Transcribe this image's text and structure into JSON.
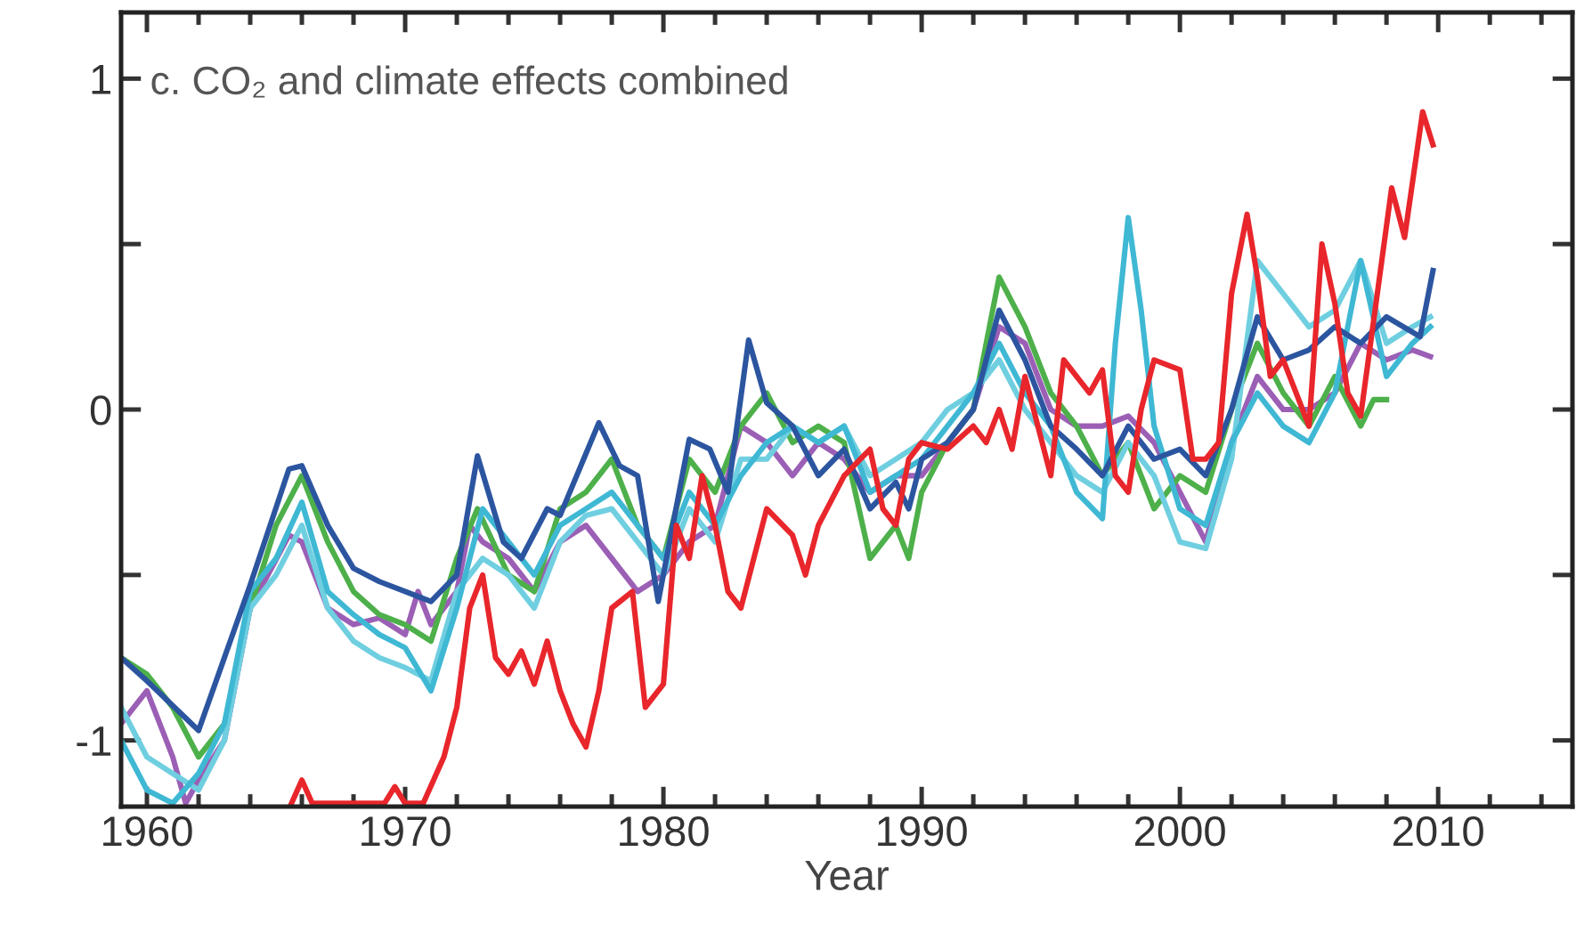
{
  "chart_data": {
    "type": "line",
    "title": "c. CO₂ and climate effects combined",
    "xlabel": "Year",
    "xlim": [
      1959,
      2015.2
    ],
    "xticks": [
      1960,
      {
        "value": 1962,
        "label": null
      },
      {
        "value": 1964,
        "label": null
      },
      {
        "value": 1966,
        "label": null
      },
      {
        "value": 1968,
        "label": null
      },
      1970,
      {
        "value": 1972,
        "label": null
      },
      {
        "value": 1974,
        "label": null
      },
      {
        "value": 1976,
        "label": null
      },
      {
        "value": 1978,
        "label": null
      },
      1980,
      {
        "value": 1982,
        "label": null
      },
      {
        "value": 1984,
        "label": null
      },
      {
        "value": 1986,
        "label": null
      },
      {
        "value": 1988,
        "label": null
      },
      1990,
      {
        "value": 1992,
        "label": null
      },
      {
        "value": 1994,
        "label": null
      },
      {
        "value": 1996,
        "label": null
      },
      {
        "value": 1998,
        "label": null
      },
      2000,
      {
        "value": 2002,
        "label": null
      },
      {
        "value": 2004,
        "label": null
      },
      {
        "value": 2006,
        "label": null
      },
      {
        "value": 2008,
        "label": null
      },
      2010,
      {
        "value": 2012,
        "label": null
      },
      {
        "value": 2014,
        "label": null
      }
    ],
    "ylim": [
      -1.2,
      1.2
    ],
    "yticks": [
      {
        "value": -1,
        "label": "-1"
      },
      {
        "value": -0.5,
        "label": null
      },
      0,
      {
        "value": 0.5,
        "label": null
      },
      1
    ],
    "grid": false,
    "legend": false,
    "marker": "none",
    "line_style": "solid",
    "series": [
      {
        "color": "#9b5fb5",
        "x": [
          1959,
          1960,
          1961,
          1961.5,
          1962,
          1963,
          1964,
          1965.5,
          1966,
          1967,
          1968,
          1969,
          1970,
          1970.5,
          1971,
          1972,
          1972.5,
          1973,
          1974,
          1975,
          1976,
          1977,
          1978,
          1979,
          1980,
          1981,
          1982,
          1983,
          1984,
          1985,
          1986,
          1987,
          1988,
          1989,
          1990,
          1991,
          1992,
          1993,
          1994,
          1995,
          1996,
          1997,
          1998,
          1999,
          2000,
          2001,
          2002,
          2003,
          2004,
          2005,
          2006,
          2007,
          2008,
          2009,
          2009.7
        ],
        "values": [
          -0.95,
          -0.85,
          -1.05,
          -1.19,
          -1.12,
          -1.0,
          -0.6,
          -0.38,
          -0.4,
          -0.6,
          -0.65,
          -0.63,
          -0.68,
          -0.55,
          -0.65,
          -0.55,
          -0.35,
          -0.4,
          -0.45,
          -0.55,
          -0.4,
          -0.35,
          -0.45,
          -0.55,
          -0.5,
          -0.4,
          -0.35,
          -0.05,
          -0.1,
          -0.2,
          -0.1,
          -0.15,
          -0.25,
          -0.2,
          -0.2,
          -0.1,
          0.0,
          0.25,
          0.2,
          0.0,
          -0.05,
          -0.05,
          -0.02,
          -0.1,
          -0.25,
          -0.4,
          -0.1,
          0.1,
          0.0,
          0.0,
          0.05,
          0.2,
          0.15,
          0.18,
          0.16
        ]
      },
      {
        "color": "#4db04a",
        "x": [
          1959,
          1960,
          1961,
          1962,
          1963,
          1964,
          1965,
          1966,
          1967,
          1968,
          1969,
          1970,
          1971,
          1972,
          1972.8,
          1974,
          1975,
          1976,
          1977,
          1978,
          1979,
          1980,
          1981,
          1982,
          1983,
          1984,
          1985,
          1986,
          1987,
          1988,
          1989,
          1989.5,
          1990,
          1991,
          1992,
          1993,
          1994,
          1995,
          1996,
          1997,
          1998,
          1999,
          2000,
          2001,
          2002,
          2003,
          2004,
          2005,
          2006,
          2007,
          2007.5,
          2008
        ],
        "values": [
          -0.75,
          -0.8,
          -0.9,
          -1.05,
          -0.95,
          -0.6,
          -0.35,
          -0.2,
          -0.4,
          -0.55,
          -0.62,
          -0.65,
          -0.7,
          -0.45,
          -0.3,
          -0.5,
          -0.55,
          -0.3,
          -0.25,
          -0.15,
          -0.35,
          -0.45,
          -0.15,
          -0.25,
          -0.05,
          0.05,
          -0.1,
          -0.05,
          -0.1,
          -0.45,
          -0.35,
          -0.45,
          -0.25,
          -0.1,
          0.0,
          0.4,
          0.25,
          0.05,
          -0.05,
          -0.2,
          -0.1,
          -0.3,
          -0.2,
          -0.25,
          0.0,
          0.2,
          0.05,
          -0.05,
          0.1,
          -0.05,
          0.03,
          0.03
        ]
      },
      {
        "color": "#6fcfe0",
        "x": [
          1959,
          1960,
          1961,
          1962,
          1963,
          1964,
          1965,
          1966,
          1967,
          1968,
          1969,
          1970,
          1971,
          1972,
          1973,
          1974,
          1975,
          1976,
          1977,
          1978,
          1979,
          1980,
          1981,
          1982,
          1983,
          1984,
          1985,
          1986,
          1987,
          1988,
          1989,
          1990,
          1991,
          1992,
          1993,
          1994,
          1995,
          1996,
          1997,
          1998,
          1999,
          2000,
          2001,
          2002,
          2003,
          2004,
          2005,
          2006,
          2007,
          2008,
          2009,
          2009.7
        ],
        "values": [
          -0.9,
          -1.05,
          -1.1,
          -1.15,
          -1.0,
          -0.6,
          -0.5,
          -0.35,
          -0.6,
          -0.7,
          -0.75,
          -0.78,
          -0.82,
          -0.55,
          -0.45,
          -0.5,
          -0.6,
          -0.4,
          -0.32,
          -0.3,
          -0.4,
          -0.5,
          -0.3,
          -0.4,
          -0.15,
          -0.15,
          -0.05,
          -0.1,
          -0.05,
          -0.2,
          -0.15,
          -0.1,
          0.0,
          0.05,
          0.15,
          0.0,
          -0.1,
          -0.2,
          -0.25,
          -0.1,
          -0.2,
          -0.4,
          -0.42,
          -0.15,
          0.45,
          0.35,
          0.25,
          0.3,
          0.45,
          0.2,
          0.25,
          0.28
        ]
      },
      {
        "color": "#3fb8d4",
        "x": [
          1959,
          1960,
          1961,
          1962,
          1963,
          1964,
          1965,
          1966,
          1967,
          1968,
          1969,
          1970,
          1971,
          1972,
          1973,
          1974,
          1975,
          1976,
          1977,
          1978,
          1979,
          1980,
          1981,
          1982,
          1983,
          1984,
          1985,
          1986,
          1987,
          1988,
          1989,
          1990,
          1991,
          1992,
          1993,
          1994,
          1995,
          1996,
          1997,
          1997.5,
          1998,
          1998.5,
          1999,
          2000,
          2001,
          2002,
          2003,
          2004,
          2005,
          2006,
          2007,
          2008,
          2009,
          2009.7
        ],
        "values": [
          -1.0,
          -1.15,
          -1.19,
          -1.1,
          -0.95,
          -0.55,
          -0.45,
          -0.28,
          -0.55,
          -0.62,
          -0.68,
          -0.72,
          -0.85,
          -0.6,
          -0.3,
          -0.4,
          -0.5,
          -0.35,
          -0.3,
          -0.25,
          -0.35,
          -0.45,
          -0.25,
          -0.35,
          -0.2,
          -0.1,
          -0.05,
          -0.1,
          -0.05,
          -0.25,
          -0.2,
          -0.15,
          -0.05,
          0.05,
          0.2,
          0.05,
          -0.05,
          -0.25,
          -0.33,
          0.2,
          0.58,
          0.3,
          -0.05,
          -0.3,
          -0.35,
          -0.1,
          0.05,
          -0.05,
          -0.1,
          0.05,
          0.45,
          0.1,
          0.2,
          0.25
        ]
      },
      {
        "color": "#2c55a0",
        "x": [
          1959,
          1960,
          1962,
          1964,
          1965.5,
          1966,
          1967,
          1968,
          1969,
          1970,
          1971,
          1972,
          1972.8,
          1973.8,
          1974.5,
          1975.5,
          1976,
          1977.5,
          1978.3,
          1979,
          1979.8,
          1981,
          1981.8,
          1982.5,
          1983.3,
          1984,
          1985,
          1986,
          1987,
          1988,
          1989,
          1989.5,
          1990,
          1991,
          1992,
          1993,
          1994,
          1995,
          1996,
          1997,
          1998,
          1999,
          2000,
          2001,
          2002,
          2003,
          2004,
          2005,
          2006,
          2007,
          2008,
          2009.3,
          2009.8
        ],
        "values": [
          -0.75,
          -0.82,
          -0.97,
          -0.53,
          -0.18,
          -0.17,
          -0.35,
          -0.48,
          -0.52,
          -0.55,
          -0.58,
          -0.5,
          -0.14,
          -0.4,
          -0.45,
          -0.3,
          -0.32,
          -0.04,
          -0.17,
          -0.2,
          -0.58,
          -0.09,
          -0.12,
          -0.25,
          0.21,
          0.02,
          -0.05,
          -0.2,
          -0.12,
          -0.3,
          -0.22,
          -0.3,
          -0.15,
          -0.1,
          0.0,
          0.3,
          0.15,
          -0.05,
          -0.12,
          -0.2,
          -0.05,
          -0.15,
          -0.12,
          -0.2,
          0.0,
          0.28,
          0.15,
          0.18,
          0.25,
          0.2,
          0.28,
          0.22,
          0.42
        ]
      },
      {
        "color": "#e8262b",
        "x": [
          1965.6,
          1966,
          1966.4,
          1969.2,
          1969.6,
          1970,
          1970.7,
          1971.5,
          1972,
          1972.5,
          1973,
          1973.5,
          1974,
          1974.5,
          1975,
          1975.5,
          1976,
          1976.5,
          1977,
          1977.5,
          1978,
          1978.8,
          1979.3,
          1980,
          1980.5,
          1981,
          1981.5,
          1982,
          1982.5,
          1983,
          1983.5,
          1984,
          1985,
          1985.5,
          1986,
          1987,
          1988,
          1988.5,
          1989,
          1989.5,
          1990,
          1991,
          1992,
          1992.5,
          1993,
          1993.5,
          1994,
          1995,
          1995.5,
          1996,
          1996.5,
          1997,
          1997.5,
          1998,
          1998.5,
          1999,
          2000,
          2000.5,
          2001,
          2001.5,
          2002,
          2002.6,
          2003,
          2003.5,
          2004,
          2004.5,
          2005,
          2005.5,
          2006,
          2006.5,
          2007,
          2008.2,
          2008.7,
          2009.4,
          2009.8
        ],
        "values": [
          -1.19,
          -1.12,
          -1.19,
          -1.19,
          -1.14,
          -1.19,
          -1.19,
          -1.05,
          -0.9,
          -0.6,
          -0.5,
          -0.75,
          -0.8,
          -0.73,
          -0.83,
          -0.7,
          -0.85,
          -0.95,
          -1.02,
          -0.85,
          -0.6,
          -0.55,
          -0.9,
          -0.83,
          -0.35,
          -0.45,
          -0.2,
          -0.35,
          -0.55,
          -0.6,
          -0.45,
          -0.3,
          -0.38,
          -0.5,
          -0.35,
          -0.2,
          -0.12,
          -0.3,
          -0.35,
          -0.15,
          -0.1,
          -0.12,
          -0.05,
          -0.1,
          0.0,
          -0.12,
          0.1,
          -0.2,
          0.15,
          0.1,
          0.05,
          0.12,
          -0.2,
          -0.25,
          0.0,
          0.15,
          0.12,
          -0.15,
          -0.15,
          -0.1,
          0.35,
          0.59,
          0.4,
          0.1,
          0.15,
          0.05,
          -0.05,
          0.5,
          0.32,
          0.05,
          -0.02,
          0.67,
          0.52,
          0.9,
          0.8
        ]
      }
    ]
  }
}
